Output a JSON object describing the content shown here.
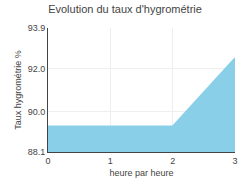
{
  "chart_data": {
    "type": "area",
    "title": "Evolution du taux d'hygrométrie",
    "x_label": "heure par heure",
    "y_label": "Taux hygrométrie %",
    "x": [
      0,
      2,
      3
    ],
    "values": [
      89.3,
      89.3,
      92.5
    ],
    "color": "#89cfe8",
    "xlim": [
      0,
      3
    ],
    "xticks": [
      0,
      1,
      2,
      3
    ],
    "ylim": [
      88.1,
      93.9
    ],
    "yticks": [
      88.1,
      {
        "value": 90.0,
        "label": "90.0"
      },
      {
        "value": 92.0,
        "label": "92.0"
      },
      93.9
    ],
    "grid": true
  }
}
